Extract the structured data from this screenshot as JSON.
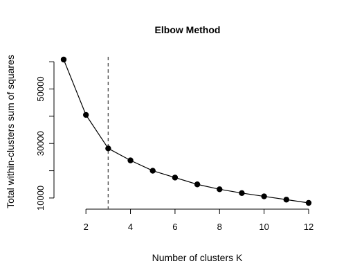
{
  "chart_data": {
    "type": "line",
    "title": "Elbow Method",
    "xlabel": "Number of clusters K",
    "ylabel": "Total within-clusters sum of squares",
    "x": [
      1,
      2,
      3,
      4,
      5,
      6,
      7,
      8,
      9,
      10,
      11,
      12
    ],
    "y": [
      60800,
      40500,
      28200,
      23800,
      20000,
      17500,
      15000,
      13200,
      11800,
      10600,
      9400,
      8200
    ],
    "xlim": [
      1,
      12
    ],
    "ylim": [
      8200,
      60800
    ],
    "x_ticks": [
      2,
      4,
      6,
      8,
      10,
      12
    ],
    "y_ticks": [
      10000,
      30000,
      50000
    ],
    "y_minor_ticks": [
      20000,
      40000,
      60000
    ],
    "markers": true,
    "grid": false,
    "reference_line": {
      "orientation": "vertical",
      "x": 3,
      "style": "dashed",
      "color": "#555555"
    },
    "line_color": "#000000",
    "marker_color": "#000000"
  }
}
